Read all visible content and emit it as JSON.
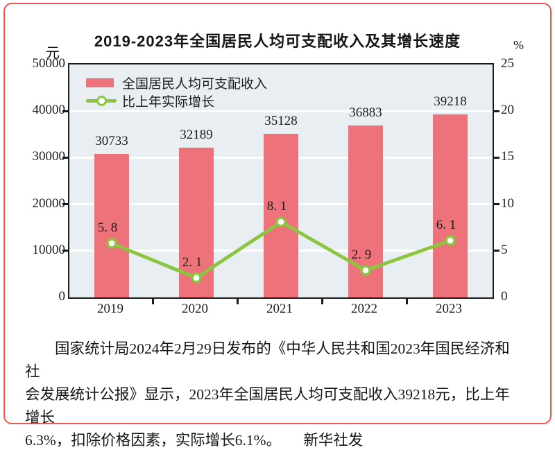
{
  "title": "2019-2023年全国居民人均可支配收入及其增长速度",
  "chart_data": {
    "type": "bar",
    "combo": [
      "bar",
      "line"
    ],
    "title": "2019-2023年全国居民人均可支配收入及其增长速度",
    "categories": [
      "2019",
      "2020",
      "2021",
      "2022",
      "2023"
    ],
    "series": [
      {
        "name": "全国居民人均可支配收入",
        "type": "bar",
        "axis": "left",
        "values": [
          30733,
          32189,
          35128,
          36883,
          39218
        ],
        "labels": [
          "30733",
          "32189",
          "35128",
          "36883",
          "39218"
        ],
        "color": "#ee727a"
      },
      {
        "name": "比上年实际增长",
        "type": "line",
        "axis": "right",
        "values": [
          5.8,
          2.1,
          8.1,
          2.9,
          6.1
        ],
        "labels": [
          "5. 8",
          "2. 1",
          "8. 1",
          "2. 9",
          "6. 1"
        ],
        "color": "#8cc53f"
      }
    ],
    "left_axis": {
      "unit": "元",
      "min": 0,
      "max": 50000,
      "ticks": [
        0,
        10000,
        20000,
        30000,
        40000,
        50000
      ]
    },
    "right_axis": {
      "unit": "%",
      "min": 0,
      "max": 25,
      "ticks": [
        0,
        5,
        10,
        15,
        20,
        25
      ]
    },
    "grid": "horizontal-white-lines",
    "legend_position": "top-left-inside-plot",
    "plot_background": "#e9eef3",
    "frame_border_color": "#f0554e"
  },
  "caption": {
    "lines": [
      "国家统计局2024年2月29日发布的《中华人民共和国2023年国民经济和社",
      "会发展统计公报》显示，2023年全国居民人均可支配收入39218元，比上年增长",
      "6.3%，扣除价格因素，实际增长6.1%。　　新华社发"
    ]
  }
}
